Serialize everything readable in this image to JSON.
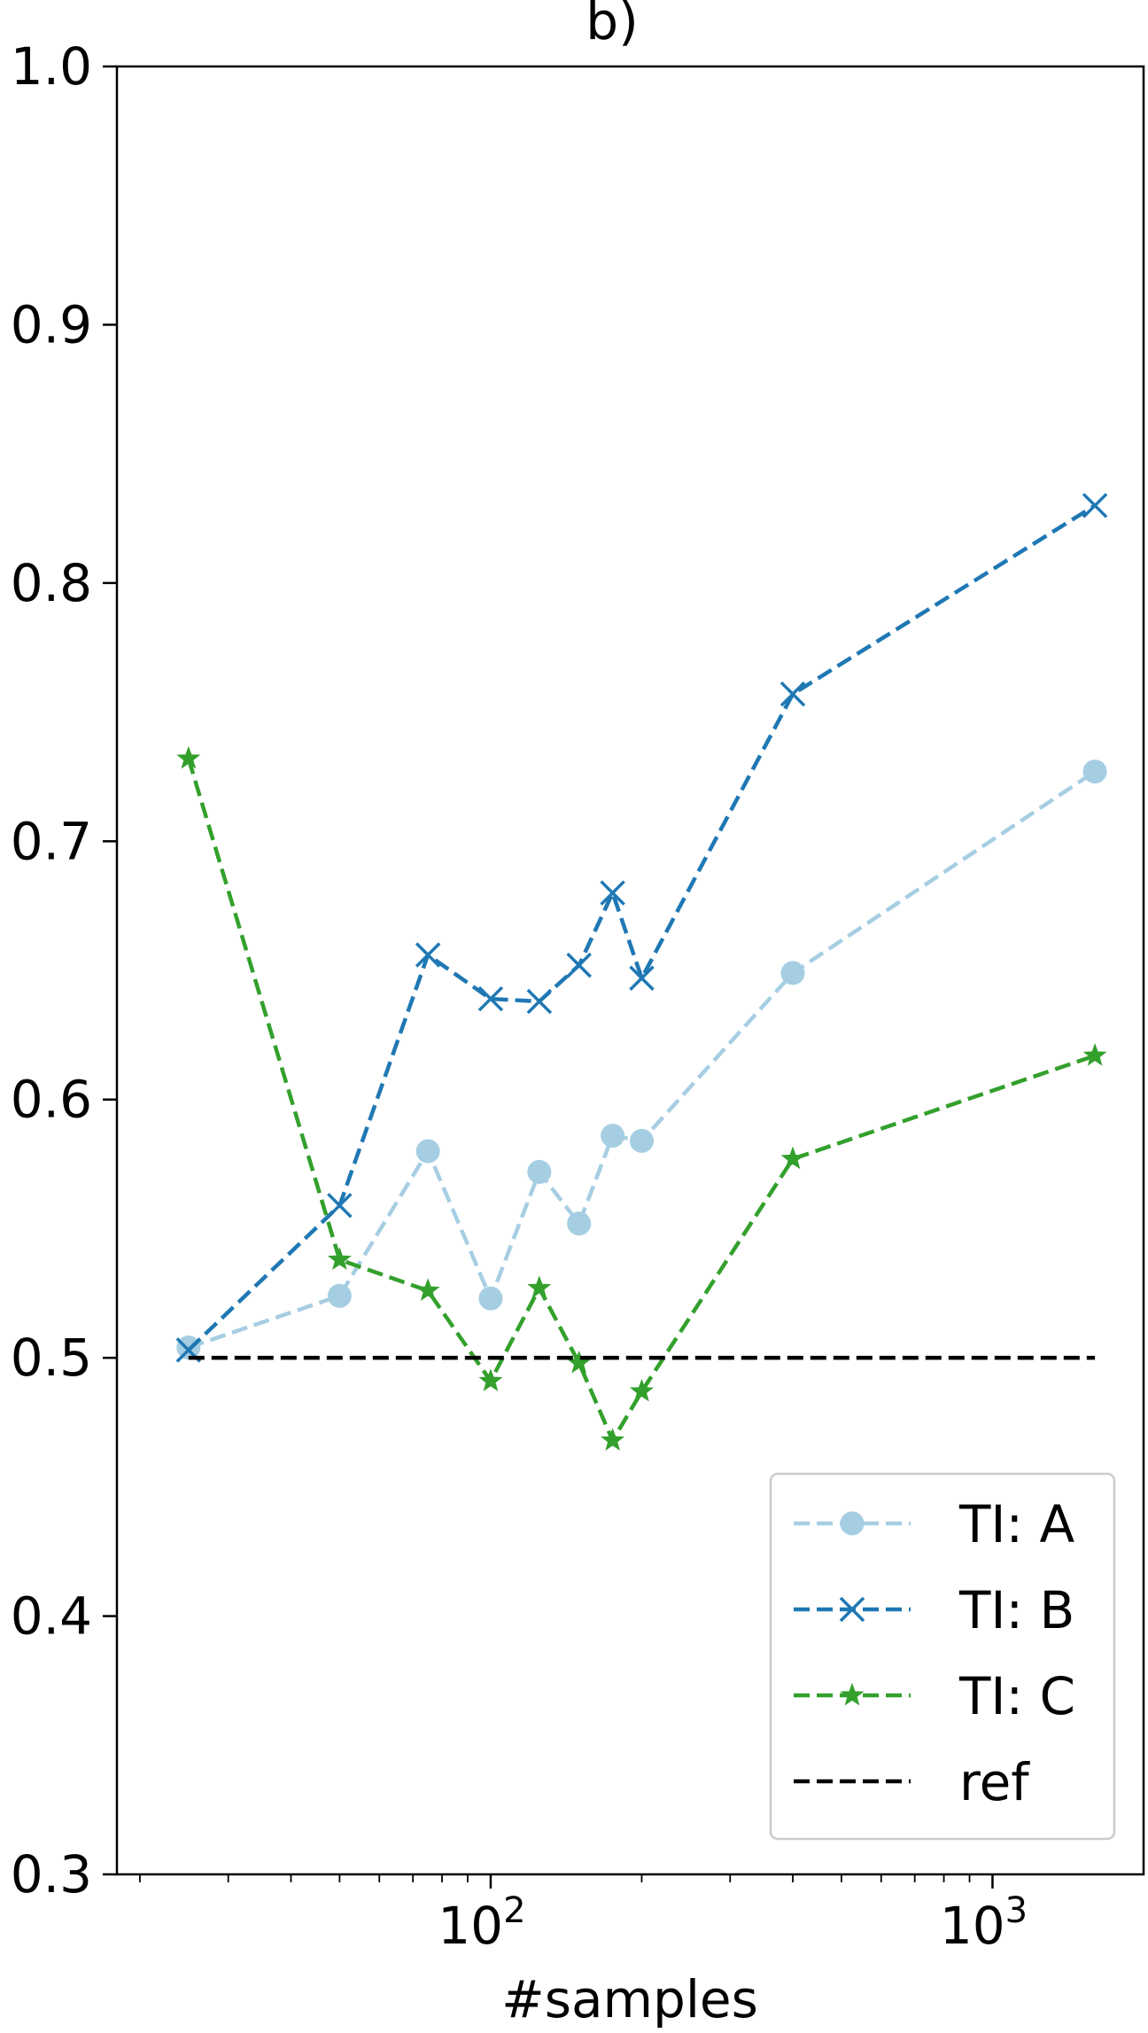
{
  "chart_data": {
    "type": "line",
    "title": "b)",
    "xlabel": "#samples",
    "ylabel": "",
    "xscale": "log",
    "xlim": [
      18,
      2000
    ],
    "ylim": [
      0.3,
      1.0
    ],
    "xticks": [
      {
        "value": 100,
        "base": "10",
        "exp": "2"
      },
      {
        "value": 1000,
        "base": "10",
        "exp": "3"
      }
    ],
    "yticks": [
      "0.3",
      "0.4",
      "0.5",
      "0.6",
      "0.7",
      "0.8",
      "0.9",
      "1.0"
    ],
    "grid": false,
    "legend_position": "lower-right",
    "series": [
      {
        "name": "TI: A",
        "color": "#a6cee3",
        "marker": "circle",
        "linestyle": "dashed",
        "x": [
          25,
          50,
          75,
          100,
          125,
          150,
          175,
          200,
          400,
          1600
        ],
        "y": [
          0.504,
          0.524,
          0.58,
          0.523,
          0.572,
          0.552,
          0.586,
          0.584,
          0.649,
          0.727
        ]
      },
      {
        "name": "TI: B",
        "color": "#1f78b4",
        "marker": "x",
        "linestyle": "dashed",
        "x": [
          25,
          50,
          75,
          100,
          125,
          150,
          175,
          200,
          400,
          1600
        ],
        "y": [
          0.503,
          0.559,
          0.656,
          0.639,
          0.638,
          0.652,
          0.68,
          0.647,
          0.757,
          0.83
        ]
      },
      {
        "name": "TI: C",
        "color": "#33a02c",
        "marker": "star",
        "linestyle": "dashed",
        "x": [
          25,
          50,
          75,
          100,
          125,
          150,
          175,
          200,
          400,
          1600
        ],
        "y": [
          0.732,
          0.538,
          0.526,
          0.491,
          0.527,
          0.498,
          0.468,
          0.487,
          0.577,
          0.617
        ]
      },
      {
        "name": "ref",
        "color": "#000000",
        "marker": "none",
        "linestyle": "dashed",
        "x": [
          25,
          1600
        ],
        "y": [
          0.5,
          0.5
        ]
      }
    ]
  }
}
